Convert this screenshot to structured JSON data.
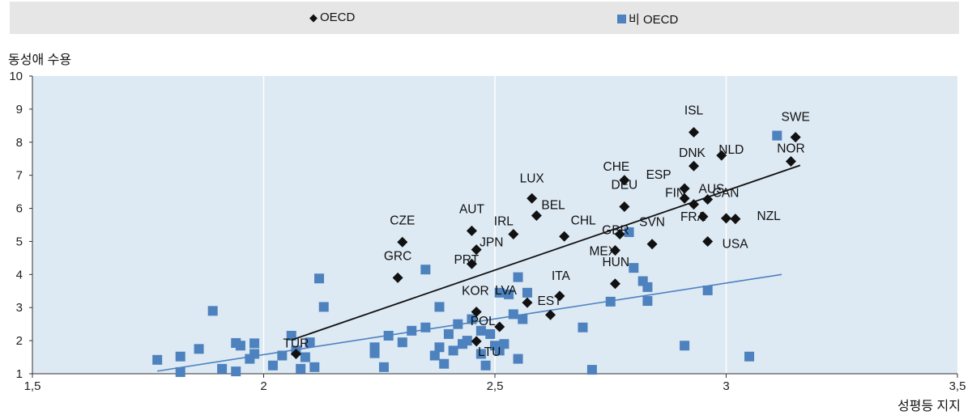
{
  "legend": {
    "oecd": "OECD",
    "non_oecd": "비 OECD"
  },
  "chart_data": {
    "type": "scatter",
    "ylabel": "동성애 수용",
    "xlabel": "성평등 지지",
    "xlim": [
      1.5,
      3.5
    ],
    "ylim": [
      1,
      10
    ],
    "x_ticks": [
      "1,5",
      "2",
      "2,5",
      "3",
      "3,5"
    ],
    "y_ticks": [
      "1",
      "2",
      "3",
      "4",
      "5",
      "6",
      "7",
      "8",
      "9",
      "10"
    ],
    "grid": "vertical",
    "colors": {
      "oecd": "#111111",
      "non_oecd": "#4d82bf",
      "plot_bg": "#dde9f3"
    },
    "series": [
      {
        "name": "OECD",
        "marker": "diamond",
        "points": [
          {
            "label": "SWE",
            "x": 3.15,
            "y": 8.15
          },
          {
            "label": "ISL",
            "x": 2.93,
            "y": 8.3
          },
          {
            "label": "NLD",
            "x": 2.99,
            "y": 7.6
          },
          {
            "label": "DNK",
            "x": 2.93,
            "y": 7.28
          },
          {
            "label": "NOR",
            "x": 3.14,
            "y": 7.42
          },
          {
            "label": "ESP",
            "x": 2.91,
            "y": 6.6
          },
          {
            "label": "CHE",
            "x": 2.78,
            "y": 6.85
          },
          {
            "label": "DEU",
            "x": 2.78,
            "y": 6.05
          },
          {
            "label": "FIN",
            "x": 2.91,
            "y": 6.3
          },
          {
            "label": "AUS",
            "x": 2.93,
            "y": 6.12
          },
          {
            "label": "CAN",
            "x": 2.96,
            "y": 6.27
          },
          {
            "label": "FRA",
            "x": 2.95,
            "y": 5.75
          },
          {
            "label": "NZL",
            "x": 3.0,
            "y": 5.7
          },
          {
            "label": "",
            "x": 3.02,
            "y": 5.68
          },
          {
            "label": "USA",
            "x": 2.96,
            "y": 5.0
          },
          {
            "label": "LUX",
            "x": 2.58,
            "y": 6.3
          },
          {
            "label": "BEL",
            "x": 2.59,
            "y": 5.78
          },
          {
            "label": "CHL",
            "x": 2.65,
            "y": 5.15
          },
          {
            "label": "GBR",
            "x": 2.77,
            "y": 5.22
          },
          {
            "label": "SVN",
            "x": 2.84,
            "y": 4.92
          },
          {
            "label": "MEX",
            "x": 2.76,
            "y": 4.73
          },
          {
            "label": "HUN",
            "x": 2.76,
            "y": 3.72
          },
          {
            "label": "AUT",
            "x": 2.45,
            "y": 5.32
          },
          {
            "label": "IRL",
            "x": 2.54,
            "y": 5.22
          },
          {
            "label": "JPN",
            "x": 2.46,
            "y": 4.75
          },
          {
            "label": "PRT",
            "x": 2.45,
            "y": 4.32
          },
          {
            "label": "CZE",
            "x": 2.3,
            "y": 4.98
          },
          {
            "label": "GRC",
            "x": 2.29,
            "y": 3.9
          },
          {
            "label": "ITA",
            "x": 2.64,
            "y": 3.35
          },
          {
            "label": "EST",
            "x": 2.62,
            "y": 2.78
          },
          {
            "label": "KOR",
            "x": 2.46,
            "y": 2.87
          },
          {
            "label": "LVA",
            "x": 2.57,
            "y": 3.15
          },
          {
            "label": "POL",
            "x": 2.51,
            "y": 2.42
          },
          {
            "label": "LTU",
            "x": 2.46,
            "y": 1.98
          },
          {
            "label": "TUR",
            "x": 2.07,
            "y": 1.6
          }
        ],
        "trendline": [
          [
            2.06,
            2.02
          ],
          [
            3.16,
            7.3
          ]
        ]
      },
      {
        "name": "비 OECD",
        "marker": "square",
        "points": [
          {
            "x": 1.77,
            "y": 1.42
          },
          {
            "x": 1.82,
            "y": 1.52
          },
          {
            "x": 1.82,
            "y": 1.05
          },
          {
            "x": 1.86,
            "y": 1.75
          },
          {
            "x": 1.89,
            "y": 2.9
          },
          {
            "x": 1.91,
            "y": 1.15
          },
          {
            "x": 1.94,
            "y": 1.93
          },
          {
            "x": 1.94,
            "y": 1.07
          },
          {
            "x": 1.95,
            "y": 1.85
          },
          {
            "x": 1.97,
            "y": 1.45
          },
          {
            "x": 1.98,
            "y": 1.92
          },
          {
            "x": 1.98,
            "y": 1.6
          },
          {
            "x": 2.02,
            "y": 1.25
          },
          {
            "x": 2.04,
            "y": 1.55
          },
          {
            "x": 2.06,
            "y": 2.15
          },
          {
            "x": 2.07,
            "y": 1.7
          },
          {
            "x": 2.08,
            "y": 1.15
          },
          {
            "x": 2.09,
            "y": 1.5
          },
          {
            "x": 2.1,
            "y": 1.95
          },
          {
            "x": 2.11,
            "y": 1.2
          },
          {
            "x": 2.12,
            "y": 3.88
          },
          {
            "x": 2.13,
            "y": 3.02
          },
          {
            "x": 2.24,
            "y": 1.8
          },
          {
            "x": 2.24,
            "y": 1.62
          },
          {
            "x": 2.26,
            "y": 1.2
          },
          {
            "x": 2.27,
            "y": 2.15
          },
          {
            "x": 2.3,
            "y": 1.95
          },
          {
            "x": 2.32,
            "y": 2.3
          },
          {
            "x": 2.35,
            "y": 4.15
          },
          {
            "x": 2.35,
            "y": 2.4
          },
          {
            "x": 2.37,
            "y": 1.55
          },
          {
            "x": 2.38,
            "y": 3.02
          },
          {
            "x": 2.38,
            "y": 1.8
          },
          {
            "x": 2.39,
            "y": 1.3
          },
          {
            "x": 2.4,
            "y": 2.2
          },
          {
            "x": 2.41,
            "y": 1.7
          },
          {
            "x": 2.42,
            "y": 2.5
          },
          {
            "x": 2.43,
            "y": 1.9
          },
          {
            "x": 2.44,
            "y": 2.0
          },
          {
            "x": 2.45,
            "y": 2.65
          },
          {
            "x": 2.47,
            "y": 2.3
          },
          {
            "x": 2.47,
            "y": 1.6
          },
          {
            "x": 2.48,
            "y": 1.25
          },
          {
            "x": 2.49,
            "y": 2.2
          },
          {
            "x": 2.5,
            "y": 1.85
          },
          {
            "x": 2.51,
            "y": 3.45
          },
          {
            "x": 2.51,
            "y": 1.7
          },
          {
            "x": 2.52,
            "y": 1.9
          },
          {
            "x": 2.53,
            "y": 3.4
          },
          {
            "x": 2.54,
            "y": 2.8
          },
          {
            "x": 2.55,
            "y": 3.92
          },
          {
            "x": 2.55,
            "y": 1.45
          },
          {
            "x": 2.56,
            "y": 2.65
          },
          {
            "x": 2.57,
            "y": 3.45
          },
          {
            "x": 2.69,
            "y": 2.4
          },
          {
            "x": 2.71,
            "y": 1.12
          },
          {
            "x": 2.75,
            "y": 3.18
          },
          {
            "x": 2.79,
            "y": 5.28
          },
          {
            "x": 2.8,
            "y": 4.2
          },
          {
            "x": 2.82,
            "y": 3.8
          },
          {
            "x": 2.83,
            "y": 3.62
          },
          {
            "x": 2.83,
            "y": 3.2
          },
          {
            "x": 2.91,
            "y": 1.85
          },
          {
            "x": 2.96,
            "y": 3.52
          },
          {
            "x": 3.05,
            "y": 1.52
          },
          {
            "x": 3.11,
            "y": 8.2
          }
        ],
        "trendline": [
          [
            1.77,
            1.08
          ],
          [
            3.12,
            4.0
          ]
        ]
      }
    ]
  }
}
